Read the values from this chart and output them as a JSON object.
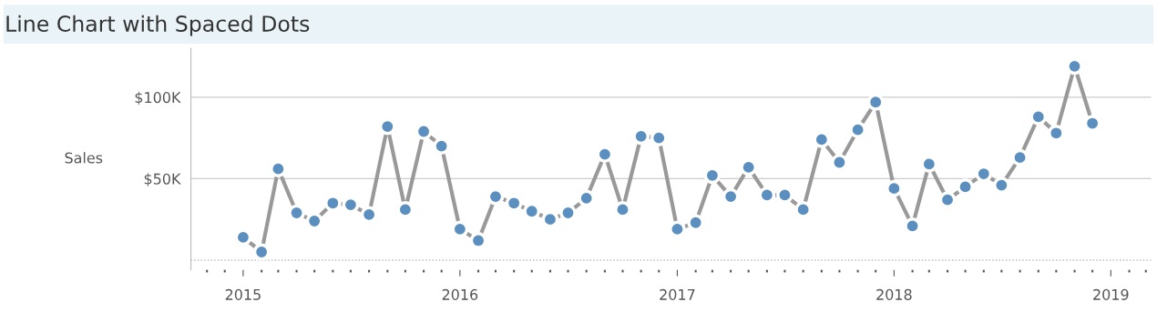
{
  "chart_data": {
    "type": "line",
    "title": "Line Chart with Spaced Dots",
    "ylabel": "Sales",
    "x": [
      "2015-01",
      "2015-02",
      "2015-03",
      "2015-04",
      "2015-05",
      "2015-06",
      "2015-07",
      "2015-08",
      "2015-09",
      "2015-10",
      "2015-11",
      "2015-12",
      "2016-01",
      "2016-02",
      "2016-03",
      "2016-04",
      "2016-05",
      "2016-06",
      "2016-07",
      "2016-08",
      "2016-09",
      "2016-10",
      "2016-11",
      "2016-12",
      "2017-01",
      "2017-02",
      "2017-03",
      "2017-04",
      "2017-05",
      "2017-06",
      "2017-07",
      "2017-08",
      "2017-09",
      "2017-10",
      "2017-11",
      "2017-12",
      "2018-01",
      "2018-02",
      "2018-03",
      "2018-04",
      "2018-05",
      "2018-06",
      "2018-07",
      "2018-08",
      "2018-09",
      "2018-10",
      "2018-11",
      "2018-12"
    ],
    "series": [
      {
        "color": "#5b8fbf",
        "values": [
          14000,
          5000,
          56000,
          29000,
          24000,
          35000,
          34000,
          28000,
          82000,
          31000,
          79000,
          70000,
          19000,
          12000,
          39000,
          35000,
          30000,
          25000,
          29000,
          38000,
          65000,
          31000,
          76000,
          75000,
          19000,
          23000,
          52000,
          39000,
          57000,
          40000,
          40000,
          31000,
          74000,
          60000,
          80000,
          97000,
          44000,
          21000,
          59000,
          37000,
          45000,
          53000,
          46000,
          63000,
          88000,
          78000,
          119000,
          84000
        ]
      }
    ],
    "xlim": [
      "2014-10-05",
      "2019-03-10"
    ],
    "xticks": [
      {
        "value": "2015-01",
        "label": "2015"
      },
      {
        "value": "2016-01",
        "label": "2016"
      },
      {
        "value": "2017-01",
        "label": "2017"
      },
      {
        "value": "2018-01",
        "label": "2018"
      },
      {
        "value": "2019-01",
        "label": "2019"
      }
    ],
    "ylim": [
      -6000,
      130000
    ],
    "yticks": [
      {
        "value": 50000,
        "label": "$50K"
      },
      {
        "value": 100000,
        "label": "$100K"
      }
    ],
    "ref_lines": [
      {
        "axis": "y",
        "value": 0,
        "color": "#bbbbbb",
        "line_style": "dotted"
      }
    ],
    "grid": "y",
    "legend": false,
    "marker": "circle",
    "line_style": "solid"
  }
}
